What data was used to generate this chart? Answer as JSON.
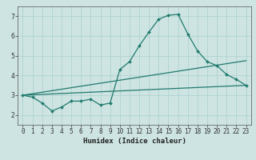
{
  "xlabel": "Humidex (Indice chaleur)",
  "ylabel": "",
  "xlim": [
    -0.5,
    23.5
  ],
  "ylim": [
    1.5,
    7.5
  ],
  "xticks": [
    0,
    1,
    2,
    3,
    4,
    5,
    6,
    7,
    8,
    9,
    10,
    11,
    12,
    13,
    14,
    15,
    16,
    17,
    18,
    19,
    20,
    21,
    22,
    23
  ],
  "yticks": [
    2,
    3,
    4,
    5,
    6,
    7
  ],
  "background_color": "#cde4e2",
  "grid_color": "#aacfcc",
  "line_color": "#217a6e",
  "lines": [
    {
      "x": [
        0,
        1,
        2,
        3,
        4,
        5,
        6,
        7,
        8,
        9,
        10,
        11,
        12,
        13,
        14,
        15,
        16,
        17,
        18,
        19,
        20,
        21,
        22,
        23
      ],
      "y": [
        3.0,
        2.9,
        2.6,
        2.2,
        2.4,
        2.7,
        2.7,
        2.8,
        2.5,
        2.6,
        4.3,
        4.7,
        5.5,
        6.2,
        6.85,
        7.05,
        7.1,
        6.1,
        5.25,
        4.7,
        4.5,
        4.05,
        3.8,
        3.5
      ],
      "marker": "D",
      "markersize": 2.0,
      "linewidth": 0.9
    },
    {
      "x": [
        0,
        23
      ],
      "y": [
        3.0,
        4.75
      ],
      "marker": null,
      "markersize": 0,
      "linewidth": 0.9
    },
    {
      "x": [
        0,
        23
      ],
      "y": [
        3.0,
        3.5
      ],
      "marker": null,
      "markersize": 0,
      "linewidth": 0.9
    }
  ],
  "tick_fontsize": 5.5,
  "xlabel_fontsize": 6.5,
  "xlabel_fontweight": "bold"
}
